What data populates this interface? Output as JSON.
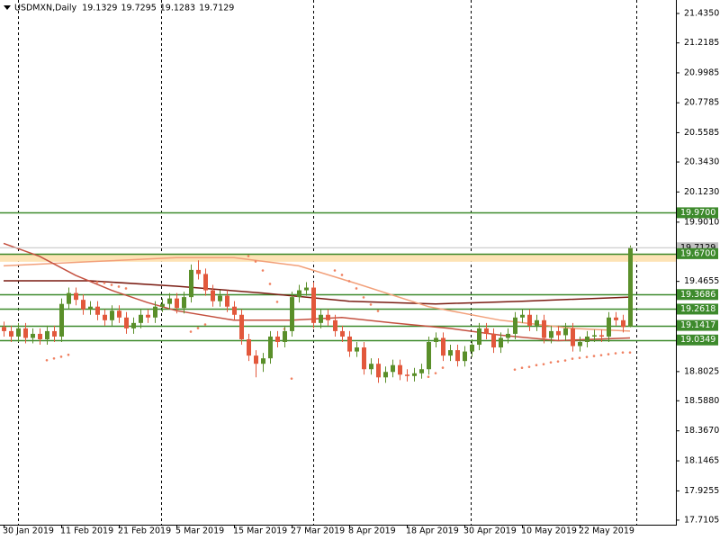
{
  "chart_data": {
    "type": "candlestick",
    "title": "USDMXN,Daily",
    "header_values": [
      19.1329,
      19.7295,
      19.1283,
      19.7129
    ],
    "categories": [
      "30 Jan 2019",
      null,
      null,
      null,
      null,
      null,
      null,
      null,
      "11 Feb 2019",
      null,
      null,
      null,
      null,
      null,
      null,
      null,
      "21 Feb 2019",
      null,
      null,
      null,
      null,
      null,
      null,
      null,
      "5 Mar 2019",
      null,
      null,
      null,
      null,
      null,
      null,
      null,
      "15 Mar 2019",
      null,
      null,
      null,
      null,
      null,
      null,
      null,
      "27 Mar 2019",
      null,
      null,
      null,
      null,
      null,
      null,
      null,
      "8 Apr 2019",
      null,
      null,
      null,
      null,
      null,
      null,
      null,
      "18 Apr 2019",
      null,
      null,
      null,
      null,
      null,
      null,
      null,
      "30 Apr 2019",
      null,
      null,
      null,
      null,
      null,
      null,
      null,
      "10 May 2019",
      null,
      null,
      null,
      null,
      null,
      null,
      null,
      "22 May 2019",
      null,
      null,
      null,
      null,
      null,
      null,
      null
    ],
    "open": [
      19.13,
      19.1,
      19.06,
      19.12,
      19.05,
      19.08,
      19.04,
      19.1,
      19.06,
      19.3,
      19.38,
      19.33,
      19.26,
      19.28,
      19.22,
      19.18,
      19.25,
      19.2,
      19.12,
      19.16,
      19.22,
      19.2,
      19.28,
      19.3,
      19.34,
      19.27,
      19.35,
      19.55,
      19.52,
      19.4,
      19.32,
      19.36,
      19.28,
      19.22,
      19.04,
      18.92,
      18.86,
      18.9,
      19.06,
      19.02,
      19.1,
      19.35,
      19.4,
      19.42,
      19.16,
      19.22,
      19.18,
      19.1,
      19.06,
      18.95,
      18.98,
      18.82,
      18.86,
      18.76,
      18.8,
      18.85,
      18.78,
      18.77,
      18.79,
      18.82,
      19.02,
      19.05,
      18.92,
      18.96,
      18.88,
      18.95,
      19.0,
      19.12,
      19.08,
      18.98,
      19.05,
      19.08,
      19.2,
      19.22,
      19.14,
      19.18,
      19.05,
      19.1,
      19.07,
      19.12,
      18.99,
      19.02,
      19.06,
      19.07,
      19.06,
      19.2,
      19.18,
      19.1329
    ],
    "high": [
      19.17,
      19.14,
      19.16,
      19.16,
      19.12,
      19.12,
      19.14,
      19.14,
      19.34,
      19.42,
      19.42,
      19.37,
      19.32,
      19.32,
      19.26,
      19.29,
      19.29,
      19.24,
      19.2,
      19.26,
      19.26,
      19.32,
      19.34,
      19.38,
      19.38,
      19.39,
      19.59,
      19.62,
      19.56,
      19.44,
      19.4,
      19.4,
      19.32,
      19.26,
      19.08,
      18.96,
      18.94,
      19.1,
      19.1,
      19.14,
      19.39,
      19.44,
      19.46,
      19.46,
      19.26,
      19.26,
      19.22,
      19.14,
      19.1,
      19.02,
      19.02,
      18.9,
      18.9,
      18.84,
      18.89,
      18.89,
      18.82,
      18.83,
      18.86,
      19.06,
      19.09,
      19.09,
      19.0,
      19.0,
      18.99,
      19.04,
      19.16,
      19.16,
      19.12,
      19.09,
      19.12,
      19.24,
      19.26,
      19.26,
      19.22,
      19.22,
      19.14,
      19.14,
      19.16,
      19.16,
      19.06,
      19.1,
      19.11,
      19.11,
      19.24,
      19.24,
      19.22,
      19.7295
    ],
    "low": [
      19.06,
      19.02,
      19.02,
      19.01,
      19.01,
      19.0,
      19.0,
      19.02,
      19.02,
      19.26,
      19.29,
      19.22,
      19.22,
      19.18,
      19.14,
      19.14,
      19.16,
      19.08,
      19.08,
      19.12,
      19.16,
      19.16,
      19.24,
      19.26,
      19.23,
      19.23,
      19.31,
      19.48,
      19.36,
      19.28,
      19.28,
      19.24,
      19.18,
      19.0,
      18.88,
      18.76,
      18.8,
      18.86,
      18.98,
      18.98,
      19.06,
      19.31,
      19.36,
      19.12,
      19.12,
      19.14,
      19.06,
      19.02,
      18.91,
      18.91,
      18.78,
      18.78,
      18.72,
      18.72,
      18.76,
      18.74,
      18.73,
      18.73,
      18.75,
      18.78,
      18.98,
      18.88,
      18.88,
      18.84,
      18.84,
      18.91,
      18.96,
      19.04,
      18.94,
      18.94,
      19.01,
      19.04,
      19.16,
      19.1,
      19.1,
      19.01,
      19.01,
      19.03,
      19.03,
      18.95,
      18.95,
      18.98,
      19.02,
      19.02,
      19.02,
      19.14,
      19.09,
      19.1283
    ],
    "close": [
      19.1,
      19.06,
      19.12,
      19.05,
      19.08,
      19.04,
      19.1,
      19.06,
      19.3,
      19.38,
      19.33,
      19.26,
      19.28,
      19.22,
      19.18,
      19.25,
      19.2,
      19.12,
      19.16,
      19.22,
      19.2,
      19.28,
      19.3,
      19.34,
      19.27,
      19.35,
      19.55,
      19.52,
      19.4,
      19.32,
      19.36,
      19.28,
      19.22,
      19.04,
      18.92,
      18.86,
      18.9,
      19.06,
      19.02,
      19.1,
      19.35,
      19.4,
      19.42,
      19.16,
      19.22,
      19.18,
      19.1,
      19.06,
      18.95,
      18.98,
      18.82,
      18.86,
      18.76,
      18.8,
      18.85,
      18.78,
      18.77,
      18.79,
      18.82,
      19.02,
      19.05,
      18.92,
      18.96,
      18.88,
      18.95,
      19.0,
      19.12,
      19.08,
      18.98,
      19.05,
      19.08,
      19.2,
      19.22,
      19.14,
      19.18,
      19.05,
      19.1,
      19.07,
      19.12,
      18.99,
      19.02,
      19.06,
      19.07,
      19.06,
      19.2,
      19.18,
      19.13,
      19.7129
    ],
    "up_color": "#5a8f2a",
    "down_color": "#e2583c",
    "ylim": [
      17.677,
      21.534
    ],
    "yticks": [
      {
        "value": 21.435,
        "label": "21.4350"
      },
      21.2185,
      20.9985,
      20.7785,
      20.5585,
      {
        "value": 20.343,
        "label": "20.3430"
      },
      {
        "value": 20.123,
        "label": "20.1230"
      },
      {
        "value": 19.901,
        "label": "19.9010"
      },
      19.4655,
      18.8025,
      {
        "value": 18.588,
        "label": "18.5880"
      },
      {
        "value": 18.367,
        "label": "18.3670"
      },
      18.1465,
      17.9255,
      17.7105
    ],
    "levels": [
      {
        "value": 19.97,
        "label": "19.9700"
      },
      {
        "value": 19.67,
        "label": "19.6700"
      },
      19.3686,
      19.2618,
      19.1417,
      19.0349
    ],
    "level_color": "#3d8a2c",
    "zone": [
      19.61,
      19.67
    ],
    "zone_color": "#fde3b5",
    "lines": [
      {
        "color": "#7a1c12",
        "x": [
          0,
          12,
          24,
          36,
          48,
          60,
          72,
          87
        ],
        "values": [
          19.47,
          19.47,
          19.43,
          19.38,
          19.32,
          19.3,
          19.32,
          19.35
        ]
      },
      {
        "color": "#f2a07a",
        "x": [
          0,
          12,
          24,
          32,
          41,
          49,
          59,
          69,
          79,
          87
        ],
        "values": [
          19.58,
          19.61,
          19.64,
          19.64,
          19.58,
          19.45,
          19.28,
          19.18,
          19.12,
          19.1
        ]
      },
      {
        "color": "#c4503f",
        "x": [
          0,
          5,
          10,
          15,
          20,
          24,
          32,
          40,
          47,
          54,
          62,
          69,
          77,
          87
        ],
        "values": [
          19.745,
          19.65,
          19.51,
          19.4,
          19.31,
          19.25,
          19.18,
          19.18,
          19.2,
          19.16,
          19.12,
          19.07,
          19.03,
          19.05
        ]
      }
    ],
    "sar": {
      "color": "#f08060",
      "x": [
        6,
        7,
        8,
        9,
        13,
        14,
        15,
        16,
        17,
        26,
        27,
        28,
        34,
        35,
        36,
        37,
        38,
        39,
        40,
        46,
        47,
        48,
        49,
        50,
        51,
        52,
        59,
        60,
        61,
        71,
        72,
        73,
        74,
        75,
        76,
        77,
        78,
        79,
        80,
        81,
        82,
        83,
        84,
        85,
        86,
        87
      ],
      "values": [
        18.886,
        18.899,
        18.912,
        18.926,
        19.46,
        19.454,
        19.44,
        19.427,
        19.414,
        19.096,
        19.122,
        19.149,
        19.652,
        19.612,
        19.546,
        19.447,
        19.315,
        19.116,
        18.751,
        19.546,
        19.513,
        19.467,
        19.414,
        19.348,
        19.295,
        19.248,
        18.764,
        18.791,
        18.831,
        18.817,
        18.83,
        18.837,
        18.85,
        18.857,
        18.87,
        18.877,
        18.884,
        18.897,
        18.903,
        18.91,
        18.917,
        18.923,
        18.93,
        18.937,
        18.943,
        18.943
      ]
    }
  }
}
